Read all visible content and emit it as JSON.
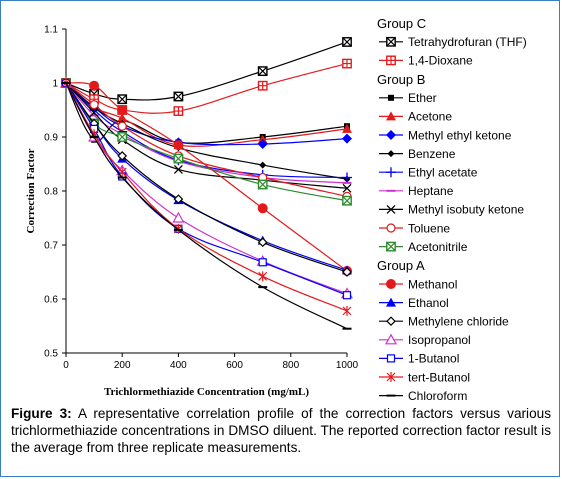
{
  "chart_data": {
    "type": "line",
    "title": "",
    "xlabel": "Trichlormethiazide Concentration (mg/mL)",
    "ylabel": "Correction Factor",
    "xlim": [
      0,
      1000
    ],
    "ylim": [
      0.5,
      1.1
    ],
    "x_ticks": [
      "0",
      "200",
      "400",
      "600",
      "800",
      "1000"
    ],
    "y_ticks": [
      "0.5",
      "0.6",
      "0.7",
      "0.8",
      "0.9",
      "1",
      "1.1"
    ],
    "grid": false,
    "legend_position": "right",
    "x": [
      0,
      100,
      200,
      400,
      700,
      1000
    ],
    "groups": [
      {
        "name": "Group C",
        "series": [
          {
            "name": "Tetrahydrofuran (THF)",
            "color": "#000000",
            "marker": "boxx",
            "values": [
              1.0,
              0.98,
              0.97,
              0.975,
              1.022,
              1.076
            ]
          },
          {
            "name": "1,4-Dioxane",
            "color": "#e31a1c",
            "marker": "boxplus",
            "values": [
              1.0,
              0.97,
              0.95,
              0.948,
              0.995,
              1.036
            ]
          }
        ]
      },
      {
        "name": "Group B",
        "series": [
          {
            "name": "Ether",
            "color": "#000000",
            "marker": "square",
            "values": [
              1.0,
              0.895,
              0.93,
              0.89,
              0.9,
              0.92
            ]
          },
          {
            "name": "Acetone",
            "color": "#e31a1c",
            "marker": "triangle",
            "values": [
              1.0,
              0.955,
              0.935,
              0.885,
              0.895,
              0.915
            ]
          },
          {
            "name": "Methyl ethyl ketone",
            "color": "#0000ff",
            "marker": "diamond",
            "values": [
              1.0,
              0.955,
              0.92,
              0.89,
              0.887,
              0.897
            ]
          },
          {
            "name": "Benzene",
            "color": "#000000",
            "marker": "diamond-small",
            "values": [
              1.0,
              0.955,
              0.925,
              0.88,
              0.848,
              0.822
            ]
          },
          {
            "name": "Ethyl acetate",
            "color": "#0000ff",
            "marker": "plus",
            "values": [
              1.0,
              0.95,
              0.91,
              0.857,
              0.83,
              0.825
            ]
          },
          {
            "name": "Heptane",
            "color": "#cc33cc",
            "marker": "dash",
            "values": [
              1.0,
              0.94,
              0.905,
              0.855,
              0.825,
              0.815
            ]
          },
          {
            "name": "Methyl isobuty ketone",
            "color": "#000000",
            "marker": "x",
            "values": [
              1.0,
              0.945,
              0.895,
              0.84,
              0.82,
              0.805
            ]
          },
          {
            "name": "Toluene",
            "color": "#e31a1c",
            "marker": "circle-open",
            "values": [
              1.0,
              0.96,
              0.92,
              0.865,
              0.825,
              0.79
            ]
          },
          {
            "name": "Acetonitrile",
            "color": "#2e8b2e",
            "marker": "boxx",
            "values": [
              1.0,
              0.925,
              0.9,
              0.86,
              0.812,
              0.782
            ]
          }
        ]
      },
      {
        "name": "Group A",
        "series": [
          {
            "name": "Methanol",
            "color": "#e31a1c",
            "marker": "circle",
            "values": [
              1.0,
              0.995,
              0.95,
              0.885,
              0.768,
              0.652
            ]
          },
          {
            "name": "Ethanol",
            "color": "#0000ff",
            "marker": "triangle",
            "values": [
              1.0,
              0.925,
              0.86,
              0.783,
              0.708,
              0.653
            ]
          },
          {
            "name": "Methylene chloride",
            "color": "#000000",
            "marker": "diamond-open",
            "values": [
              1.0,
              0.925,
              0.865,
              0.785,
              0.705,
              0.65
            ]
          },
          {
            "name": "Isopropanol",
            "color": "#cc33cc",
            "marker": "triangle-open",
            "values": [
              1.0,
              0.9,
              0.838,
              0.75,
              0.67,
              0.61
            ]
          },
          {
            "name": "1-Butanol",
            "color": "#0000ff",
            "marker": "square-open",
            "values": [
              1.0,
              0.915,
              0.827,
              0.73,
              0.668,
              0.607
            ]
          },
          {
            "name": "tert-Butanol",
            "color": "#e31a1c",
            "marker": "star",
            "values": [
              1.0,
              0.905,
              0.835,
              0.73,
              0.642,
              0.578
            ]
          },
          {
            "name": "Chloroform",
            "color": "#000000",
            "marker": "dash",
            "values": [
              1.0,
              0.9,
              0.825,
              0.728,
              0.622,
              0.545
            ]
          }
        ]
      }
    ]
  },
  "caption": {
    "label": "Figure 3:",
    "text": " A representative correlation profile of the correction factors versus various trichlormethiazide concentrations in DMSO diluent. The reported correction factor result is the average from three replicate measurements."
  }
}
